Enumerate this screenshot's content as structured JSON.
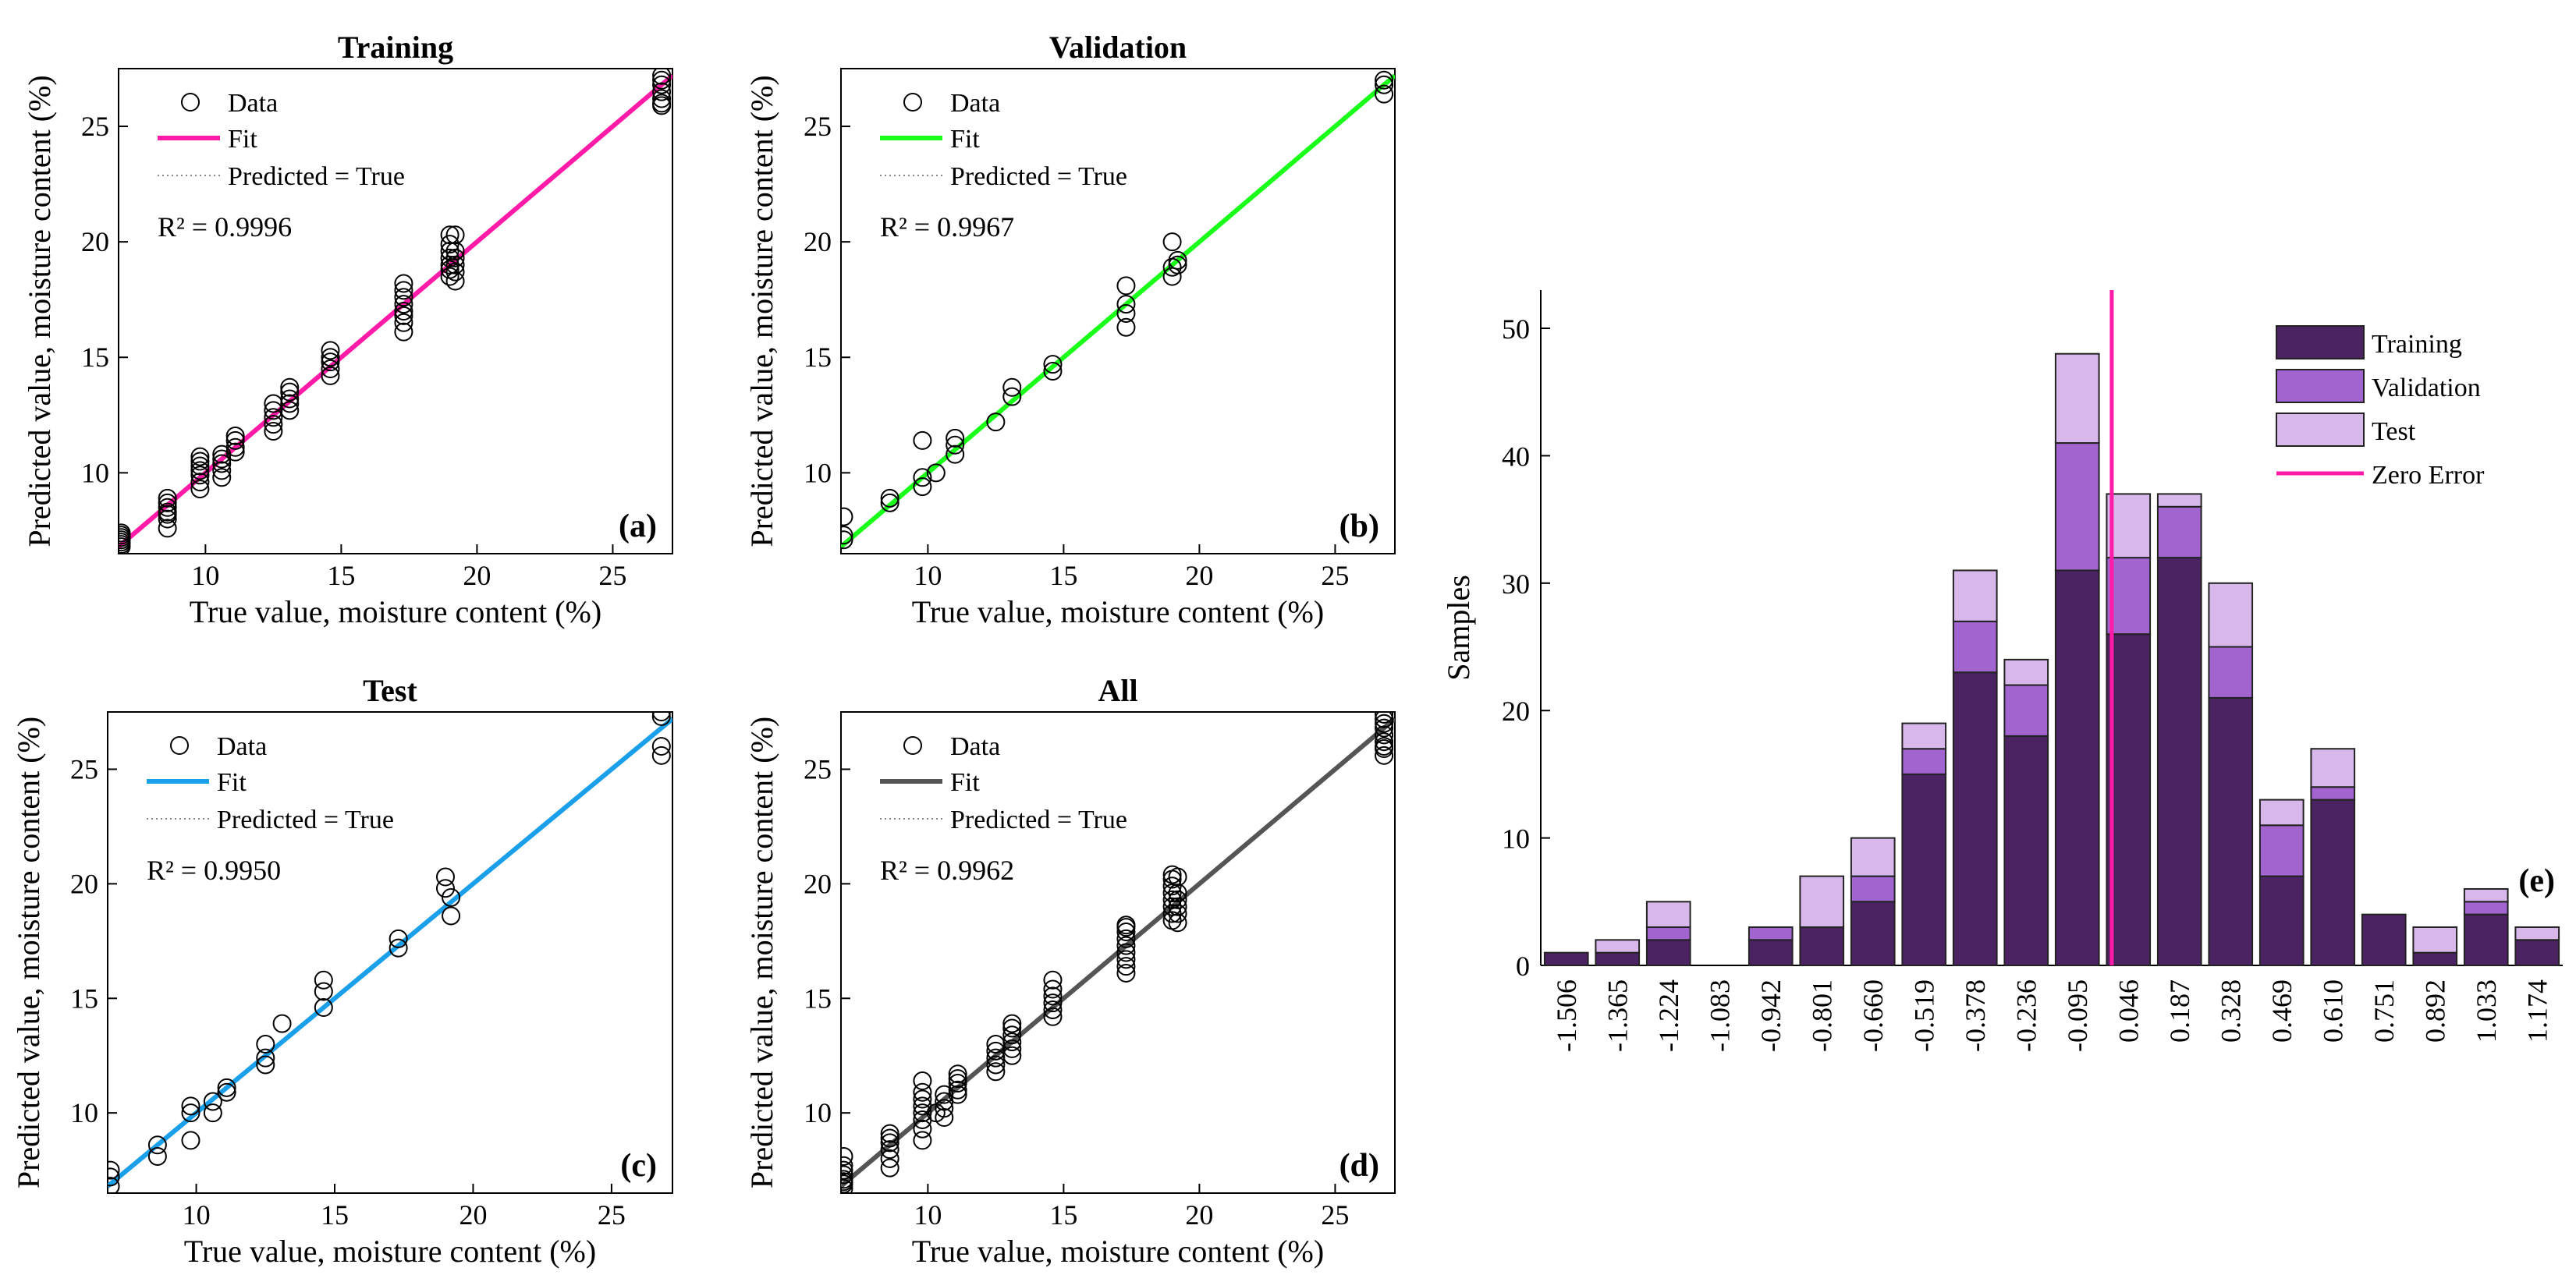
{
  "chart_data": [
    {
      "type": "scatter",
      "panel": "(a)",
      "title": "Training",
      "xlabel": "True value, moisture content (%)",
      "ylabel": "Predicted value, moisture content (%)",
      "xlim": [
        6.8,
        27.2
      ],
      "ylim": [
        6.5,
        27.5
      ],
      "xticks": [
        10,
        15,
        20,
        25
      ],
      "yticks": [
        10,
        15,
        20,
        25
      ],
      "legend": [
        "Data",
        "Fit",
        "Predicted = True"
      ],
      "r2_text": "R² = 0.9996",
      "fit_color": "#ff1aa8",
      "fit_line": [
        [
          6.8,
          6.8
        ],
        [
          27.2,
          27.2
        ]
      ],
      "x": [
        6.9,
        6.9,
        6.9,
        6.9,
        6.9,
        6.9,
        6.9,
        8.6,
        8.6,
        8.6,
        8.6,
        8.6,
        8.6,
        8.6,
        9.8,
        9.8,
        9.8,
        9.8,
        9.8,
        9.8,
        9.8,
        10.6,
        10.6,
        10.6,
        10.6,
        10.6,
        11.1,
        11.1,
        11.1,
        11.1,
        12.5,
        12.5,
        12.5,
        12.5,
        12.5,
        13.1,
        13.1,
        13.1,
        13.1,
        13.1,
        14.6,
        14.6,
        14.6,
        14.6,
        14.6,
        17.3,
        17.3,
        17.3,
        17.3,
        17.3,
        17.3,
        17.3,
        17.3,
        19.0,
        19.0,
        19.0,
        19.0,
        19.0,
        19.0,
        19.0,
        19.2,
        19.2,
        19.2,
        19.2,
        19.2,
        19.2,
        26.8,
        26.8,
        26.8,
        26.8,
        26.8,
        26.8,
        26.8
      ],
      "y": [
        6.9,
        7.0,
        7.1,
        7.2,
        7.3,
        7.4,
        6.8,
        7.6,
        8.0,
        8.3,
        8.5,
        8.7,
        8.9,
        8.2,
        9.3,
        9.6,
        9.9,
        10.1,
        10.3,
        10.5,
        10.7,
        9.8,
        10.1,
        10.4,
        10.6,
        10.8,
        10.9,
        11.1,
        11.4,
        11.6,
        11.8,
        12.1,
        12.4,
        12.7,
        13.0,
        12.7,
        13.0,
        13.2,
        13.5,
        13.7,
        14.2,
        14.5,
        14.8,
        15.0,
        15.3,
        16.1,
        16.5,
        16.8,
        17.0,
        17.3,
        17.6,
        17.9,
        18.2,
        18.5,
        18.8,
        19.0,
        19.3,
        19.6,
        19.9,
        20.3,
        18.3,
        18.7,
        19.0,
        19.3,
        19.6,
        20.3,
        25.9,
        26.2,
        26.5,
        26.8,
        27.0,
        27.2,
        26.0
      ]
    },
    {
      "type": "scatter",
      "panel": "(b)",
      "title": "Validation",
      "xlabel": "True value, moisture content (%)",
      "ylabel": "Predicted value, moisture content (%)",
      "xlim": [
        6.8,
        27.2
      ],
      "ylim": [
        6.5,
        27.5
      ],
      "xticks": [
        10,
        15,
        20,
        25
      ],
      "yticks": [
        10,
        15,
        20,
        25
      ],
      "legend": [
        "Data",
        "Fit",
        "Predicted = True"
      ],
      "r2_text": "R² = 0.9967",
      "fit_color": "#1aff1a",
      "fit_line": [
        [
          6.8,
          6.8
        ],
        [
          27.2,
          27.2
        ]
      ],
      "x": [
        6.9,
        6.9,
        6.9,
        8.6,
        8.6,
        9.8,
        9.8,
        9.8,
        10.3,
        11.0,
        11.0,
        11.0,
        12.5,
        13.1,
        13.1,
        14.6,
        14.6,
        17.3,
        17.3,
        17.3,
        17.3,
        19.0,
        19.0,
        19.0,
        19.2,
        19.2,
        26.8,
        26.8,
        26.8
      ],
      "y": [
        7.1,
        7.3,
        8.1,
        8.7,
        8.9,
        9.4,
        9.8,
        11.4,
        10.0,
        10.8,
        11.2,
        11.5,
        12.2,
        13.3,
        13.7,
        14.4,
        14.7,
        16.3,
        16.9,
        17.3,
        18.1,
        18.5,
        18.9,
        20.0,
        19.0,
        19.2,
        26.4,
        26.8,
        27.0
      ]
    },
    {
      "type": "scatter",
      "panel": "(c)",
      "title": "Test",
      "xlabel": "True value, moisture content (%)",
      "ylabel": "Predicted value, moisture content (%)",
      "xlim": [
        6.8,
        27.2
      ],
      "ylim": [
        6.5,
        27.5
      ],
      "xticks": [
        10,
        15,
        20,
        25
      ],
      "yticks": [
        10,
        15,
        20,
        25
      ],
      "legend": [
        "Data",
        "Fit",
        "Predicted = True"
      ],
      "r2_text": "R² = 0.9950",
      "fit_color": "#1a9fea",
      "fit_line": [
        [
          6.8,
          6.8
        ],
        [
          27.2,
          27.2
        ]
      ],
      "x": [
        6.9,
        6.9,
        6.9,
        8.6,
        8.6,
        9.8,
        9.8,
        9.8,
        10.6,
        10.6,
        11.1,
        11.1,
        12.5,
        12.5,
        12.5,
        13.1,
        14.6,
        14.6,
        14.6,
        17.3,
        17.3,
        19.0,
        19.0,
        19.2,
        19.2,
        26.8,
        26.8,
        26.8,
        26.8
      ],
      "y": [
        6.8,
        7.2,
        7.5,
        8.1,
        8.6,
        8.8,
        10.0,
        10.3,
        10.0,
        10.5,
        10.9,
        11.1,
        12.1,
        12.4,
        13.0,
        13.9,
        14.6,
        15.3,
        15.8,
        17.2,
        17.6,
        19.8,
        20.3,
        18.6,
        19.4,
        25.6,
        26.0,
        27.3,
        27.5
      ]
    },
    {
      "type": "scatter",
      "panel": "(d)",
      "title": "All",
      "xlabel": "True value, moisture content (%)",
      "ylabel": "Predicted value, moisture content (%)",
      "xlim": [
        6.8,
        27.2
      ],
      "ylim": [
        6.5,
        27.5
      ],
      "xticks": [
        10,
        15,
        20,
        25
      ],
      "yticks": [
        10,
        15,
        20,
        25
      ],
      "legend": [
        "Data",
        "Fit",
        "Predicted = True"
      ],
      "r2_text": "R² = 0.9962",
      "fit_color": "#555555",
      "fit_line": [
        [
          6.8,
          6.8
        ],
        [
          27.2,
          27.2
        ]
      ],
      "x": [
        6.9,
        6.9,
        6.9,
        6.9,
        6.9,
        6.9,
        6.9,
        6.9,
        8.6,
        8.6,
        8.6,
        8.6,
        8.6,
        8.6,
        9.8,
        9.8,
        9.8,
        9.8,
        9.8,
        9.8,
        9.8,
        9.8,
        10.3,
        10.6,
        10.6,
        10.6,
        10.6,
        11.1,
        11.1,
        11.1,
        11.1,
        11.1,
        12.5,
        12.5,
        12.5,
        12.5,
        12.5,
        13.1,
        13.1,
        13.1,
        13.1,
        13.1,
        13.1,
        14.6,
        14.6,
        14.6,
        14.6,
        14.6,
        14.6,
        17.3,
        17.3,
        17.3,
        17.3,
        17.3,
        17.3,
        17.3,
        17.3,
        17.3,
        19.0,
        19.0,
        19.0,
        19.0,
        19.0,
        19.0,
        19.0,
        19.0,
        19.2,
        19.2,
        19.2,
        19.2,
        19.2,
        19.2,
        26.8,
        26.8,
        26.8,
        26.8,
        26.8,
        26.8,
        26.8,
        26.8,
        26.8
      ],
      "y": [
        6.7,
        6.9,
        7.1,
        7.3,
        7.5,
        7.7,
        8.1,
        7.0,
        7.6,
        8.0,
        8.4,
        8.7,
        8.9,
        9.1,
        8.8,
        9.3,
        9.7,
        10.0,
        10.3,
        10.6,
        10.9,
        11.4,
        10.0,
        9.8,
        10.2,
        10.5,
        10.8,
        10.8,
        11.0,
        11.3,
        11.5,
        11.7,
        11.8,
        12.1,
        12.4,
        12.7,
        13.0,
        12.5,
        12.8,
        13.1,
        13.4,
        13.7,
        13.9,
        14.2,
        14.5,
        14.8,
        15.1,
        15.4,
        15.8,
        16.1,
        16.4,
        16.7,
        17.0,
        17.3,
        17.6,
        17.9,
        18.2,
        18.1,
        18.4,
        18.7,
        19.0,
        19.3,
        19.6,
        19.9,
        20.2,
        20.4,
        18.3,
        18.7,
        19.0,
        19.3,
        19.6,
        20.3,
        25.6,
        25.9,
        26.2,
        26.5,
        26.8,
        27.0,
        27.2,
        27.4,
        26.0
      ]
    },
    {
      "type": "bar",
      "stacked": true,
      "panel": "(e)",
      "ylabel": "Samples",
      "ylim": [
        0,
        53
      ],
      "yticks": [
        0,
        10,
        20,
        30,
        40,
        50
      ],
      "categories": [
        "-1.506",
        "-1.365",
        "-1.224",
        "-1.083",
        "-0.942",
        "-0.801",
        "-0.660",
        "-0.519",
        "-0.378",
        "-0.236",
        "-0.095",
        "0.046",
        "0.187",
        "0.328",
        "0.469",
        "0.610",
        "0.751",
        "0.892",
        "1.033",
        "1.174"
      ],
      "series": [
        {
          "name": "Training",
          "color": "#4b2262",
          "values": [
            1,
            1,
            2,
            0,
            2,
            3,
            5,
            15,
            23,
            18,
            31,
            26,
            32,
            21,
            7,
            13,
            4,
            1,
            4,
            2
          ]
        },
        {
          "name": "Validation",
          "color": "#a264cf",
          "values": [
            0,
            0,
            1,
            0,
            1,
            0,
            2,
            2,
            4,
            4,
            10,
            6,
            4,
            4,
            4,
            1,
            0,
            0,
            1,
            0
          ]
        },
        {
          "name": "Test",
          "color": "#d8b8ea",
          "values": [
            0,
            1,
            2,
            0,
            0,
            4,
            3,
            2,
            4,
            2,
            7,
            5,
            1,
            5,
            2,
            3,
            0,
            2,
            1,
            1
          ]
        }
      ],
      "zero_error": {
        "name": "Zero Error",
        "color": "#ff1aa8",
        "x_value": 0
      },
      "legend_placement": "top-right"
    }
  ]
}
